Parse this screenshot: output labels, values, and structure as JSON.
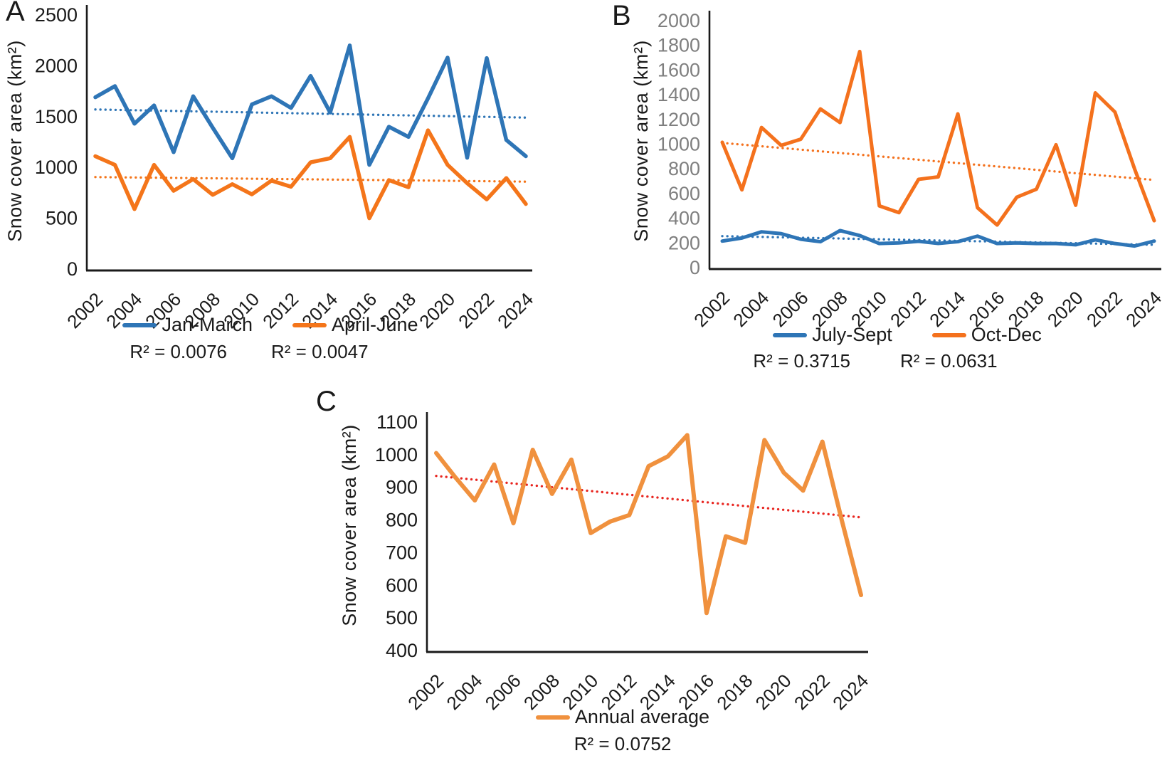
{
  "figure": {
    "panels": [
      "A",
      "B",
      "C"
    ]
  },
  "chart_data": [
    {
      "type": "line",
      "panel_label": "A",
      "ylabel": "Snow cover area (km²)",
      "x": [
        2002,
        2003,
        2004,
        2005,
        2006,
        2007,
        2008,
        2009,
        2010,
        2011,
        2012,
        2013,
        2014,
        2015,
        2016,
        2017,
        2018,
        2019,
        2020,
        2021,
        2022,
        2023,
        2024
      ],
      "x_tick_labels": [
        "2002",
        "2004",
        "2006",
        "2008",
        "2010",
        "2012",
        "2014",
        "2016",
        "2018",
        "2020",
        "2022",
        "2024"
      ],
      "y_ticks": [
        0,
        500,
        1000,
        1500,
        2000,
        2500
      ],
      "ylim": [
        0,
        2500
      ],
      "grid": false,
      "legend_position": "bottom",
      "x_tick_color": "#1a1a1a",
      "y_tick_color": "#1a1a1a",
      "series": [
        {
          "name": "Jan-March",
          "color": "#2e75b6",
          "r2_label": "R² = 0.0076",
          "values": [
            1690,
            1800,
            1430,
            1610,
            1150,
            1700,
            1390,
            1090,
            1620,
            1700,
            1585,
            1900,
            1540,
            2200,
            1025,
            1400,
            1300,
            1680,
            2080,
            1095,
            2075,
            1270,
            1110
          ],
          "trend": {
            "start": 1570,
            "end": 1490,
            "color": "#2e75b6",
            "style": "dotted"
          }
        },
        {
          "name": "April-June",
          "color": "#f4751a",
          "r2_label": "R² = 0.0047",
          "values": [
            1110,
            1025,
            590,
            1025,
            770,
            885,
            730,
            835,
            735,
            870,
            810,
            1050,
            1090,
            1300,
            500,
            875,
            805,
            1365,
            1025,
            845,
            685,
            895,
            640
          ],
          "trend": {
            "start": 905,
            "end": 860,
            "color": "#f4751a",
            "style": "dotted"
          }
        }
      ]
    },
    {
      "type": "line",
      "panel_label": "B",
      "ylabel": "Snow cover area (km²)",
      "x": [
        2002,
        2003,
        2004,
        2005,
        2006,
        2007,
        2008,
        2009,
        2010,
        2011,
        2012,
        2013,
        2014,
        2015,
        2016,
        2017,
        2018,
        2019,
        2020,
        2021,
        2022,
        2023,
        2024
      ],
      "x_tick_labels": [
        "2002",
        "2004",
        "2006",
        "2008",
        "2010",
        "2012",
        "2014",
        "2016",
        "2018",
        "2020",
        "2022",
        "2024"
      ],
      "y_ticks": [
        0,
        200,
        400,
        600,
        800,
        1000,
        1200,
        1400,
        1600,
        1800,
        2000
      ],
      "ylim": [
        0,
        2000
      ],
      "grid": false,
      "legend_position": "bottom",
      "x_tick_color": "#1a1a1a",
      "y_tick_color": "#7f7f7f",
      "series": [
        {
          "name": "July-Sept",
          "color": "#2e75b6",
          "r2_label": "R² = 0.3715",
          "values": [
            215,
            240,
            290,
            275,
            230,
            210,
            300,
            260,
            195,
            200,
            213,
            196,
            210,
            255,
            195,
            200,
            195,
            195,
            185,
            225,
            195,
            175,
            215
          ],
          "trend": {
            "start": 255,
            "end": 185,
            "color": "#2e75b6",
            "style": "dotted"
          }
        },
        {
          "name": "Oct-Dec",
          "color": "#f4711d",
          "r2_label": "R² = 0.0631",
          "values": [
            1015,
            630,
            1135,
            990,
            1040,
            1285,
            1175,
            1750,
            500,
            445,
            715,
            735,
            1245,
            485,
            345,
            570,
            635,
            995,
            505,
            1415,
            1260,
            800,
            380
          ],
          "trend": {
            "start": 1010,
            "end": 710,
            "color": "#f4711d",
            "style": "dotted"
          }
        }
      ]
    },
    {
      "type": "line",
      "panel_label": "C",
      "ylabel": "Snow cover area (km²)",
      "x": [
        2002,
        2003,
        2004,
        2005,
        2006,
        2007,
        2008,
        2009,
        2010,
        2011,
        2012,
        2013,
        2014,
        2015,
        2016,
        2017,
        2018,
        2019,
        2020,
        2021,
        2022,
        2023,
        2024
      ],
      "x_tick_labels": [
        "2002",
        "2004",
        "2006",
        "2008",
        "2010",
        "2012",
        "2014",
        "2016",
        "2018",
        "2020",
        "2022",
        "2024"
      ],
      "y_ticks": [
        400,
        500,
        600,
        700,
        800,
        900,
        1000,
        1100
      ],
      "ylim": [
        400,
        1100
      ],
      "grid": false,
      "legend_position": "bottom",
      "x_tick_color": "#1a1a1a",
      "y_tick_color": "#1a1a1a",
      "series": [
        {
          "name": "Annual average",
          "color": "#f0913e",
          "r2_label": "R² = 0.0752",
          "values": [
            1005,
            930,
            860,
            970,
            790,
            1015,
            880,
            985,
            760,
            795,
            815,
            965,
            995,
            1060,
            515,
            750,
            730,
            1045,
            945,
            890,
            1040,
            800,
            570
          ],
          "trend": {
            "start": 935,
            "end": 808,
            "color": "#e8251f",
            "style": "dotted"
          }
        }
      ]
    }
  ]
}
